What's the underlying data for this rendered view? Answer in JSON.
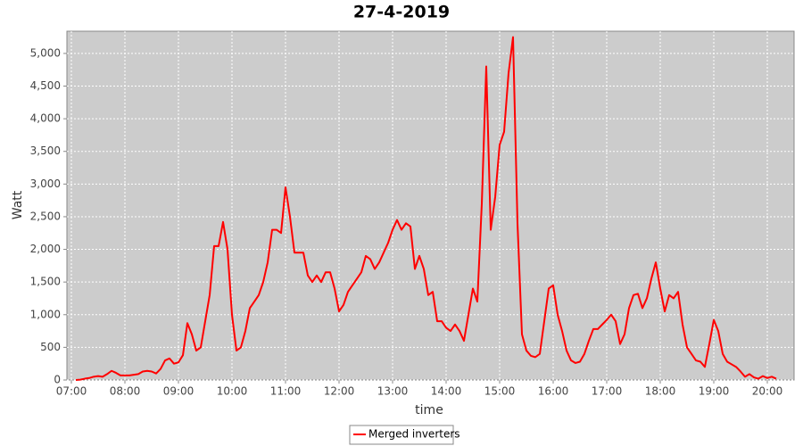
{
  "chart_data": {
    "type": "line",
    "title": "27-4-2019",
    "x_label": "time",
    "y_label": "Watt",
    "x": [
      "07:05",
      "07:10",
      "07:15",
      "07:20",
      "07:25",
      "07:30",
      "07:35",
      "07:40",
      "07:45",
      "07:50",
      "07:55",
      "08:00",
      "08:05",
      "08:10",
      "08:15",
      "08:20",
      "08:25",
      "08:30",
      "08:35",
      "08:40",
      "08:45",
      "08:50",
      "08:55",
      "09:00",
      "09:05",
      "09:10",
      "09:15",
      "09:20",
      "09:25",
      "09:30",
      "09:35",
      "09:40",
      "09:45",
      "09:50",
      "09:55",
      "10:00",
      "10:05",
      "10:10",
      "10:15",
      "10:20",
      "10:25",
      "10:30",
      "10:35",
      "10:40",
      "10:45",
      "10:50",
      "10:55",
      "11:00",
      "11:05",
      "11:10",
      "11:15",
      "11:20",
      "11:25",
      "11:30",
      "11:35",
      "11:40",
      "11:45",
      "11:50",
      "11:55",
      "12:00",
      "12:05",
      "12:10",
      "12:15",
      "12:20",
      "12:25",
      "12:30",
      "12:35",
      "12:40",
      "12:45",
      "12:50",
      "12:55",
      "13:00",
      "13:05",
      "13:10",
      "13:15",
      "13:20",
      "13:25",
      "13:30",
      "13:35",
      "13:40",
      "13:45",
      "13:50",
      "13:55",
      "14:00",
      "14:05",
      "14:10",
      "14:15",
      "14:20",
      "14:25",
      "14:30",
      "14:35",
      "14:40",
      "14:45",
      "14:50",
      "14:55",
      "15:00",
      "15:05",
      "15:10",
      "15:15",
      "15:20",
      "15:25",
      "15:30",
      "15:35",
      "15:40",
      "15:45",
      "15:50",
      "15:55",
      "16:00",
      "16:05",
      "16:10",
      "16:15",
      "16:20",
      "16:25",
      "16:30",
      "16:35",
      "16:40",
      "16:45",
      "16:50",
      "16:55",
      "17:00",
      "17:05",
      "17:10",
      "17:15",
      "17:20",
      "17:25",
      "17:30",
      "17:35",
      "17:40",
      "17:45",
      "17:50",
      "17:55",
      "18:00",
      "18:05",
      "18:10",
      "18:15",
      "18:20",
      "18:25",
      "18:30",
      "18:35",
      "18:40",
      "18:45",
      "18:50",
      "18:55",
      "19:00",
      "19:05",
      "19:10",
      "19:15",
      "19:20",
      "19:25",
      "19:30",
      "19:35",
      "19:40",
      "19:45",
      "19:50",
      "19:55",
      "20:00",
      "20:05",
      "20:10"
    ],
    "series": [
      {
        "name": "Merged inverters",
        "color": "#ff0000",
        "values": [
          0,
          5,
          20,
          30,
          50,
          60,
          50,
          90,
          140,
          110,
          70,
          70,
          70,
          80,
          90,
          130,
          140,
          130,
          100,
          170,
          300,
          330,
          250,
          270,
          380,
          870,
          700,
          450,
          500,
          900,
          1300,
          2050,
          2050,
          2420,
          2000,
          1000,
          450,
          500,
          750,
          1100,
          1200,
          1300,
          1500,
          1800,
          2300,
          2300,
          2250,
          2950,
          2500,
          1950,
          1950,
          1950,
          1600,
          1500,
          1600,
          1500,
          1650,
          1650,
          1400,
          1050,
          1150,
          1350,
          1450,
          1550,
          1650,
          1900,
          1850,
          1700,
          1800,
          1950,
          2100,
          2300,
          2450,
          2300,
          2400,
          2350,
          1700,
          1900,
          1700,
          1300,
          1350,
          900,
          900,
          800,
          750,
          850,
          750,
          600,
          1000,
          1400,
          1200,
          2700,
          4800,
          2300,
          2800,
          3600,
          3800,
          4700,
          5250,
          2400,
          700,
          450,
          370,
          350,
          400,
          900,
          1400,
          1450,
          1000,
          750,
          450,
          300,
          260,
          280,
          400,
          600,
          780,
          780,
          850,
          920,
          1000,
          900,
          550,
          700,
          1100,
          1300,
          1320,
          1100,
          1250,
          1550,
          1800,
          1400,
          1050,
          1300,
          1250,
          1350,
          850,
          500,
          400,
          300,
          280,
          200,
          550,
          920,
          750,
          400,
          280,
          240,
          200,
          130,
          50,
          90,
          40,
          20,
          60,
          30,
          50,
          20
        ]
      }
    ],
    "xlim": [
      "06:55",
      "20:30"
    ],
    "xticks": [
      "07:00",
      "08:00",
      "09:00",
      "10:00",
      "11:00",
      "12:00",
      "13:00",
      "14:00",
      "15:00",
      "16:00",
      "17:00",
      "18:00",
      "19:00",
      "20:00"
    ],
    "ylim": [
      0,
      5340
    ],
    "yticks": [
      0,
      500,
      {
        "value": 1000,
        "label": "1,000"
      },
      {
        "value": 1500,
        "label": "1,500"
      },
      {
        "value": 2000,
        "label": "2,000"
      },
      {
        "value": 2500,
        "label": "2,500"
      },
      {
        "value": 3000,
        "label": "3,000"
      },
      {
        "value": 3500,
        "label": "3,500"
      },
      {
        "value": 4000,
        "label": "4,000"
      },
      {
        "value": 4500,
        "label": "4,500"
      },
      {
        "value": 5000,
        "label": "5,000"
      }
    ],
    "grid": true,
    "legend": "bottom"
  }
}
